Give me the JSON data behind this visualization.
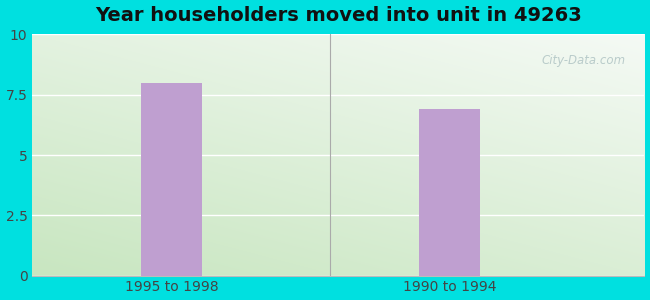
{
  "title": "Year householders moved into unit in 49263",
  "categories": [
    "1995 to 1998",
    "1990 to 1994"
  ],
  "values": [
    8.0,
    6.9
  ],
  "bar_color": "#bf9fd0",
  "bar_width": 0.22,
  "bar_positions": [
    1,
    2
  ],
  "xlim": [
    0.5,
    2.7
  ],
  "ylim": [
    0,
    10
  ],
  "yticks": [
    0,
    2.5,
    5,
    7.5,
    10
  ],
  "ytick_labels": [
    "0",
    "2.5",
    "5",
    "7.5",
    "10"
  ],
  "title_fontsize": 14,
  "tick_fontsize": 10,
  "background_outer": "#00e0e0",
  "watermark": "City-Data.com",
  "separator_x": 1.57
}
